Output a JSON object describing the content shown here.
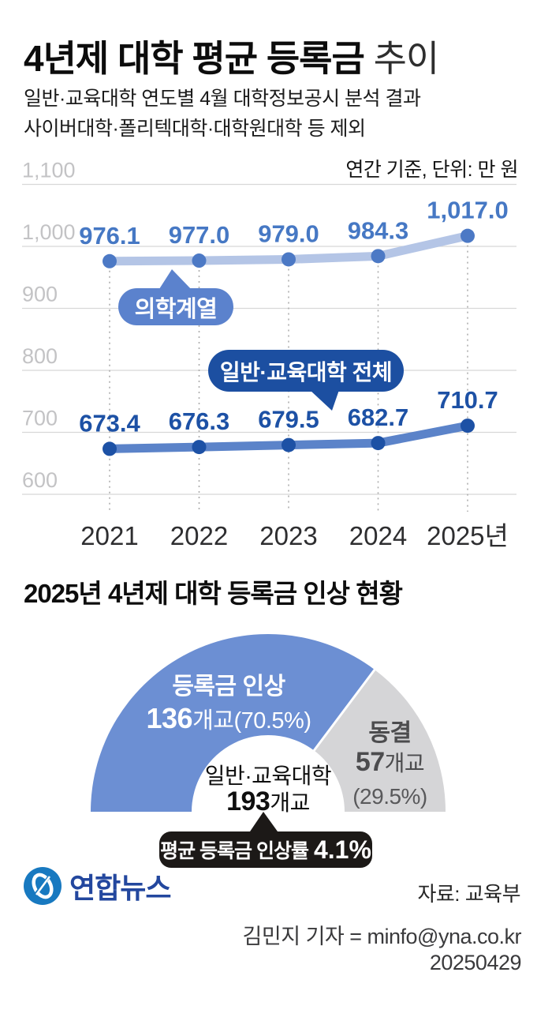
{
  "header": {
    "title_bold": "4년제 대학 평균 등록금",
    "title_suffix": "추이",
    "subtitle1": "일반·교육대학 연도별 4월 대학정보공시 분석 결과",
    "subtitle2": "사이버대학·폴리텍대학·대학원대학 등 제외"
  },
  "colors": {
    "medical_line": "#b4c5e6",
    "medical_dot": "#4c79c5",
    "medical_label": "#4678c4",
    "overall_line": "#5b83c9",
    "overall_dot": "#1d51a5",
    "overall_label": "#1d51a5",
    "callout_medical_bg": "#5b82cd",
    "callout_overall_bg": "#1c4fa1",
    "pie_blue": "#6c8fd3",
    "pie_gray": "#d5d5d7",
    "badge_bg": "#1c1917",
    "logo_blue": "#1879c0",
    "logo_navy": "#23479e"
  },
  "chart_data": [
    {
      "type": "line",
      "title": "4년제 대학 평균 등록금 추이",
      "unit_note": "연간 기준, 단위: 만 원",
      "categories": [
        "2021",
        "2022",
        "2023",
        "2024",
        "2025년"
      ],
      "series": [
        {
          "name": "의학계열",
          "values": [
            976.1,
            977.0,
            979.0,
            984.3,
            1017.0
          ],
          "labels": [
            "976.1",
            "977.0",
            "979.0",
            "984.3",
            "1,017.0"
          ],
          "line_color": "#b4c5e6",
          "dot_color": "#4c79c5",
          "label_color": "#4678c4"
        },
        {
          "name": "일반·교육대학 전체",
          "values": [
            673.4,
            676.3,
            679.5,
            682.7,
            710.7
          ],
          "labels": [
            "673.4",
            "676.3",
            "679.5",
            "682.7",
            "710.7"
          ],
          "line_color": "#5b83c9",
          "dot_color": "#1d51a5",
          "label_color": "#1d51a5"
        }
      ],
      "ylim": [
        600,
        1100
      ],
      "yticks": [
        {
          "value": 1100,
          "label": "1,100"
        },
        {
          "value": 1000,
          "label": "1,000"
        },
        {
          "value": 900,
          "label": "900"
        },
        {
          "value": 800,
          "label": "800"
        },
        {
          "value": 700,
          "label": "700"
        },
        {
          "value": 600,
          "label": "600"
        }
      ],
      "grid": true,
      "legend_position": "callouts",
      "callouts": [
        {
          "text": "의학계열"
        },
        {
          "text": "일반·교육대학 전체"
        }
      ]
    },
    {
      "type": "pie",
      "shape": "half-donut",
      "title": "2025년 4년제 대학 등록금 인상 현황",
      "slices": [
        {
          "label": "등록금 인상",
          "count": "136",
          "suffix": "개교(70.5%)",
          "value": 70.5,
          "color": "#6c8fd3"
        },
        {
          "label": "동결",
          "count": "57",
          "suffix": "개교",
          "pct": "(29.5%)",
          "value": 29.5,
          "color": "#d5d5d7"
        }
      ],
      "center": {
        "label": "일반·교육대학",
        "count": "193",
        "suffix": "개교"
      },
      "badge": {
        "label": "평균 등록금 인상률",
        "value": "4.1%"
      }
    }
  ],
  "footer": {
    "logo_text": "연합뉴스",
    "source": "자료: 교육부",
    "credit": "김민지 기자 = minfo@yna.co.kr",
    "date": "20250429"
  }
}
